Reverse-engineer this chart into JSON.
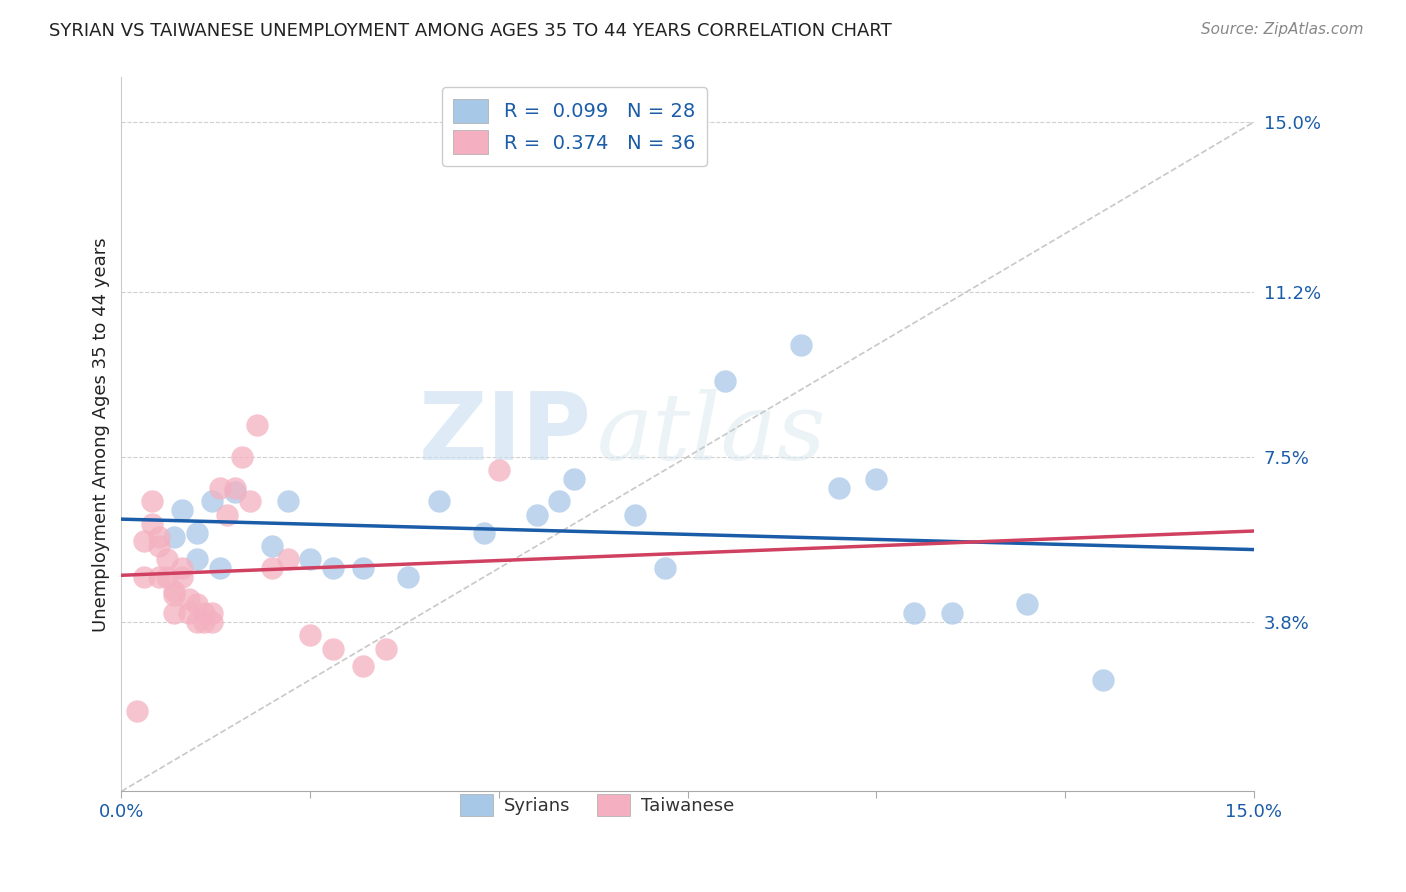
{
  "title": "SYRIAN VS TAIWANESE UNEMPLOYMENT AMONG AGES 35 TO 44 YEARS CORRELATION CHART",
  "source": "Source: ZipAtlas.com",
  "ylabel": "Unemployment Among Ages 35 to 44 years",
  "xlim": [
    0.0,
    0.15
  ],
  "ylim": [
    0.0,
    0.16
  ],
  "ytick_positions": [
    0.038,
    0.075,
    0.112,
    0.15
  ],
  "ytick_labels": [
    "3.8%",
    "7.5%",
    "11.2%",
    "15.0%"
  ],
  "xtick_positions": [
    0.0,
    0.025,
    0.05,
    0.075,
    0.1,
    0.125,
    0.15
  ],
  "syrian_R": 0.099,
  "syrian_N": 28,
  "taiwanese_R": 0.374,
  "taiwanese_N": 36,
  "syrian_color": "#a8c8e8",
  "taiwanese_color": "#f4b0c0",
  "syrian_line_color": "#1a5ca8",
  "taiwanese_line_color": "#d04060",
  "watermark_zip": "ZIP",
  "watermark_atlas": "atlas",
  "syrians_x": [
    0.007,
    0.008,
    0.01,
    0.01,
    0.012,
    0.013,
    0.015,
    0.02,
    0.022,
    0.025,
    0.028,
    0.032,
    0.038,
    0.042,
    0.048,
    0.055,
    0.058,
    0.06,
    0.068,
    0.072,
    0.08,
    0.09,
    0.095,
    0.1,
    0.105,
    0.11,
    0.12,
    0.13
  ],
  "syrians_y": [
    0.057,
    0.063,
    0.058,
    0.052,
    0.065,
    0.05,
    0.067,
    0.055,
    0.065,
    0.052,
    0.05,
    0.05,
    0.048,
    0.065,
    0.058,
    0.062,
    0.065,
    0.07,
    0.062,
    0.05,
    0.092,
    0.1,
    0.068,
    0.07,
    0.04,
    0.04,
    0.042,
    0.025
  ],
  "taiwanese_x": [
    0.002,
    0.003,
    0.003,
    0.004,
    0.004,
    0.005,
    0.005,
    0.005,
    0.006,
    0.006,
    0.007,
    0.007,
    0.007,
    0.008,
    0.008,
    0.009,
    0.009,
    0.01,
    0.01,
    0.011,
    0.011,
    0.012,
    0.012,
    0.013,
    0.014,
    0.015,
    0.016,
    0.017,
    0.018,
    0.02,
    0.022,
    0.025,
    0.028,
    0.032,
    0.035,
    0.05
  ],
  "taiwanese_y": [
    0.018,
    0.048,
    0.056,
    0.06,
    0.065,
    0.057,
    0.055,
    0.048,
    0.052,
    0.048,
    0.045,
    0.044,
    0.04,
    0.05,
    0.048,
    0.043,
    0.04,
    0.042,
    0.038,
    0.04,
    0.038,
    0.04,
    0.038,
    0.068,
    0.062,
    0.068,
    0.075,
    0.065,
    0.082,
    0.05,
    0.052,
    0.035,
    0.032,
    0.028,
    0.032,
    0.072
  ]
}
